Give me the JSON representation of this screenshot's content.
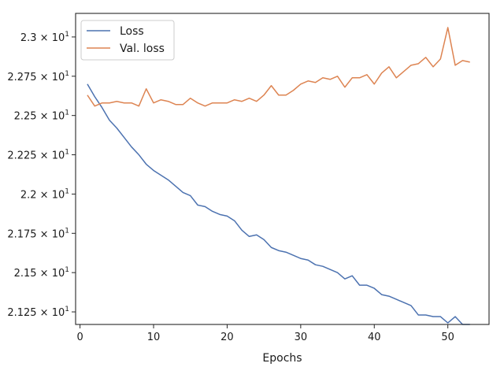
{
  "chart_data": {
    "type": "line",
    "title": "",
    "xlabel": "Epochs",
    "ylabel": "",
    "xlim": [
      -0.6,
      55.6
    ],
    "ylim": [
      21.17,
      23.15
    ],
    "grid": false,
    "legend_position": "top-left",
    "x_ticks": [
      {
        "value": 0,
        "label": "0"
      },
      {
        "value": 10,
        "label": "10"
      },
      {
        "value": 20,
        "label": "20"
      },
      {
        "value": 30,
        "label": "30"
      },
      {
        "value": 40,
        "label": "40"
      },
      {
        "value": 50,
        "label": "50"
      }
    ],
    "y_ticks": [
      {
        "value": 21.25,
        "mantissa": "2.125"
      },
      {
        "value": 21.5,
        "mantissa": "2.15"
      },
      {
        "value": 21.75,
        "mantissa": "2.175"
      },
      {
        "value": 22.0,
        "mantissa": "2.2"
      },
      {
        "value": 22.25,
        "mantissa": "2.225"
      },
      {
        "value": 22.5,
        "mantissa": "2.25"
      },
      {
        "value": 22.75,
        "mantissa": "2.275"
      },
      {
        "value": 23.0,
        "mantissa": "2.3"
      }
    ],
    "y_tick_times": "×",
    "y_tick_base": "10",
    "y_tick_exponent": "1",
    "series": [
      {
        "name": "Loss",
        "color": "#4c72b0",
        "x": [
          1,
          2,
          3,
          4,
          5,
          6,
          7,
          8,
          9,
          10,
          11,
          12,
          13,
          14,
          15,
          16,
          17,
          18,
          19,
          20,
          21,
          22,
          23,
          24,
          25,
          26,
          27,
          28,
          29,
          30,
          31,
          32,
          33,
          34,
          35,
          36,
          37,
          38,
          39,
          40,
          41,
          42,
          43,
          44,
          45,
          46,
          47,
          48,
          49,
          50,
          51,
          52,
          53
        ],
        "values": [
          22.7,
          22.62,
          22.55,
          22.47,
          22.42,
          22.36,
          22.3,
          22.25,
          22.19,
          22.15,
          22.12,
          22.09,
          22.05,
          22.01,
          21.99,
          21.93,
          21.92,
          21.89,
          21.87,
          21.86,
          21.83,
          21.77,
          21.73,
          21.74,
          21.71,
          21.66,
          21.64,
          21.63,
          21.61,
          21.59,
          21.58,
          21.55,
          21.54,
          21.52,
          21.5,
          21.46,
          21.48,
          21.42,
          21.42,
          21.4,
          21.36,
          21.35,
          21.33,
          21.31,
          21.29,
          21.23,
          21.23,
          21.22,
          21.22,
          21.18,
          21.22,
          21.17,
          21.17
        ]
      },
      {
        "name": "Val. loss",
        "color": "#dd8452",
        "x": [
          1,
          2,
          3,
          4,
          5,
          6,
          7,
          8,
          9,
          10,
          11,
          12,
          13,
          14,
          15,
          16,
          17,
          18,
          19,
          20,
          21,
          22,
          23,
          24,
          25,
          26,
          27,
          28,
          29,
          30,
          31,
          32,
          33,
          34,
          35,
          36,
          37,
          38,
          39,
          40,
          41,
          42,
          43,
          44,
          45,
          46,
          47,
          48,
          49,
          50,
          51,
          52,
          53
        ],
        "values": [
          22.63,
          22.56,
          22.58,
          22.58,
          22.59,
          22.58,
          22.58,
          22.56,
          22.67,
          22.58,
          22.6,
          22.59,
          22.57,
          22.57,
          22.61,
          22.58,
          22.56,
          22.58,
          22.58,
          22.58,
          22.6,
          22.59,
          22.61,
          22.59,
          22.63,
          22.69,
          22.63,
          22.63,
          22.66,
          22.7,
          22.72,
          22.71,
          22.74,
          22.73,
          22.75,
          22.68,
          22.74,
          22.74,
          22.76,
          22.7,
          22.77,
          22.81,
          22.74,
          22.78,
          22.82,
          22.83,
          22.87,
          22.81,
          22.86,
          23.06,
          22.82,
          22.85,
          22.84
        ]
      }
    ]
  }
}
